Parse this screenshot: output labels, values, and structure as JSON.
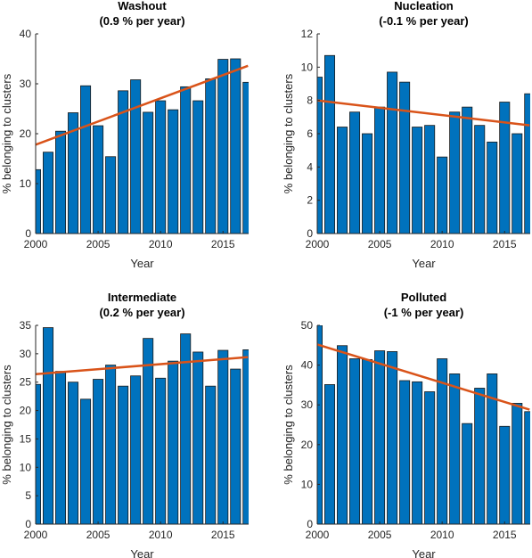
{
  "chart_data": [
    {
      "type": "bar",
      "title": "Washout",
      "subtitle": "(0.9 % per year)",
      "xlabel": "Year",
      "ylabel": "% belonging to clusters",
      "xlim": [
        2000,
        2017
      ],
      "ylim": [
        0,
        40
      ],
      "xticks": [
        2000,
        2005,
        2010,
        2015
      ],
      "yticks": [
        0,
        10,
        20,
        30,
        40
      ],
      "x": [
        2000,
        2001,
        2002,
        2003,
        2004,
        2005,
        2006,
        2007,
        2008,
        2009,
        2010,
        2011,
        2012,
        2013,
        2014,
        2015,
        2016,
        2017
      ],
      "values": [
        12.8,
        16.3,
        20.5,
        24.2,
        29.6,
        21.6,
        15.4,
        28.6,
        30.8,
        24.3,
        26.6,
        24.8,
        29.4,
        26.6,
        31.0,
        34.9,
        35.0,
        30.3
      ],
      "trend": {
        "start": [
          2000,
          17.8
        ],
        "end": [
          2017,
          33.6
        ]
      }
    },
    {
      "type": "bar",
      "title": "Nucleation",
      "subtitle": "(-0.1 % per year)",
      "xlabel": "Year",
      "ylabel": "% belonging to clusters",
      "xlim": [
        2000,
        2017
      ],
      "ylim": [
        0,
        12
      ],
      "xticks": [
        2000,
        2005,
        2010,
        2015
      ],
      "yticks": [
        0,
        2,
        4,
        6,
        8,
        10,
        12
      ],
      "x": [
        2000,
        2001,
        2002,
        2003,
        2004,
        2005,
        2006,
        2007,
        2008,
        2009,
        2010,
        2011,
        2012,
        2013,
        2014,
        2015,
        2016,
        2017
      ],
      "values": [
        9.4,
        10.7,
        6.4,
        7.3,
        6.0,
        7.6,
        9.7,
        9.1,
        6.4,
        6.5,
        4.6,
        7.3,
        7.6,
        6.5,
        5.5,
        7.9,
        6.0,
        8.4
      ],
      "trend": {
        "start": [
          2000,
          8.0
        ],
        "end": [
          2017,
          6.5
        ]
      }
    },
    {
      "type": "bar",
      "title": "Intermediate",
      "subtitle": "(0.2 % per year)",
      "xlabel": "Year",
      "ylabel": "% belonging to clusters",
      "xlim": [
        2000,
        2017
      ],
      "ylim": [
        0,
        35
      ],
      "xticks": [
        2000,
        2005,
        2010,
        2015
      ],
      "yticks": [
        0,
        5,
        10,
        15,
        20,
        25,
        30,
        35
      ],
      "x": [
        2000,
        2001,
        2002,
        2003,
        2004,
        2005,
        2006,
        2007,
        2008,
        2009,
        2010,
        2011,
        2012,
        2013,
        2014,
        2015,
        2016,
        2017
      ],
      "values": [
        24.6,
        34.6,
        26.9,
        25.0,
        22.0,
        25.5,
        28.0,
        24.3,
        26.1,
        32.7,
        25.7,
        28.7,
        33.5,
        30.3,
        24.3,
        30.6,
        27.3,
        30.7
      ],
      "trend": {
        "start": [
          2000,
          26.4
        ],
        "end": [
          2017,
          29.4
        ]
      }
    },
    {
      "type": "bar",
      "title": "Polluted",
      "subtitle": "(-1 % per year)",
      "xlabel": "Year",
      "ylabel": "% belonging to clusters",
      "xlim": [
        2000,
        2017
      ],
      "ylim": [
        0,
        50
      ],
      "xticks": [
        2000,
        2005,
        2010,
        2015
      ],
      "yticks": [
        0,
        10,
        20,
        30,
        40,
        50
      ],
      "x": [
        2000,
        2001,
        2002,
        2003,
        2004,
        2005,
        2006,
        2007,
        2008,
        2009,
        2010,
        2011,
        2012,
        2013,
        2014,
        2015,
        2016,
        2017
      ],
      "values": [
        50.0,
        35.1,
        44.9,
        41.6,
        41.4,
        43.6,
        43.4,
        36.1,
        35.8,
        33.3,
        41.6,
        37.8,
        25.3,
        34.2,
        37.8,
        24.6,
        30.4,
        28.3
      ],
      "trend": {
        "start": [
          2000,
          45.2
        ],
        "end": [
          2017,
          28.8
        ]
      }
    }
  ],
  "colors": {
    "bar": "#0072BD",
    "trend": "#D95319"
  }
}
